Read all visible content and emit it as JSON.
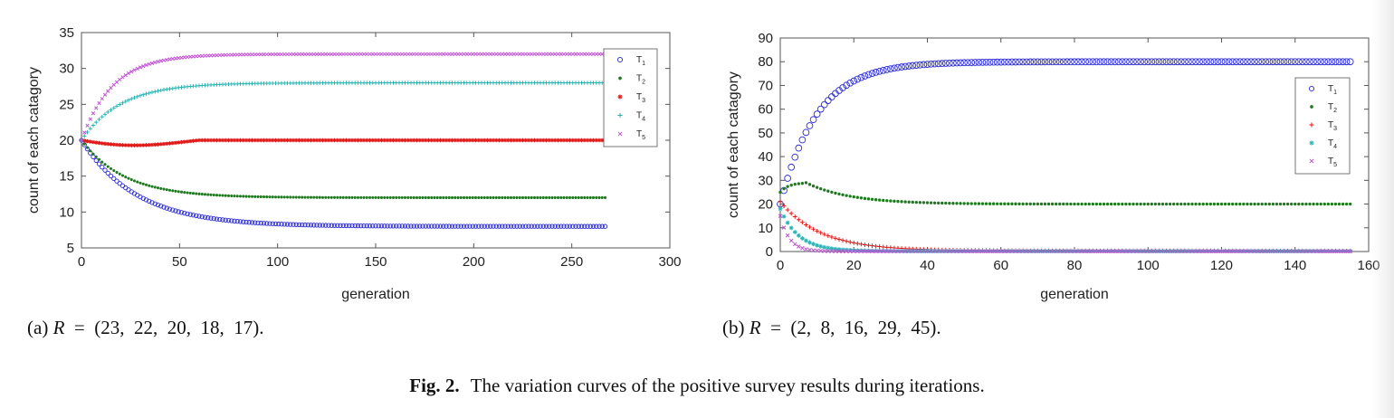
{
  "chart_data": [
    {
      "type": "scatter",
      "panel_label": "(a)",
      "caption_lhs": "R",
      "caption_eq": "=",
      "caption_rhs": "(23,  22,  20,  18,  17).",
      "xlabel": "generation",
      "ylabel": "count of each catagory",
      "xlim": [
        0,
        300
      ],
      "ylim": [
        5,
        35
      ],
      "xticks": [
        "0",
        "50",
        "100",
        "150",
        "200",
        "250",
        "300"
      ],
      "yticks": [
        "5",
        "10",
        "15",
        "20",
        "25",
        "30",
        "35"
      ],
      "legend_position": "top-right",
      "x_range": [
        0,
        268
      ],
      "series": [
        {
          "name": "T1",
          "label": "T",
          "sub": "1",
          "marker": "circle",
          "color": "#2b2bd6",
          "start": 20,
          "end": 8,
          "rate": 28
        },
        {
          "name": "T2",
          "label": "T",
          "sub": "2",
          "marker": "dot",
          "color": "#1d7a1d",
          "start": 20,
          "end": 12,
          "rate": 22
        },
        {
          "name": "T3",
          "label": "T",
          "sub": "3",
          "marker": "star",
          "color": "#e01818",
          "start": 20,
          "end": 20,
          "rate": 30
        },
        {
          "name": "T4",
          "label": "T",
          "sub": "4",
          "marker": "plus",
          "color": "#2ab5b5",
          "start": 20,
          "end": 28,
          "rate": 20
        },
        {
          "name": "T5",
          "label": "T",
          "sub": "5",
          "marker": "x",
          "color": "#c24fd6",
          "start": 20,
          "end": 32,
          "rate": 16
        }
      ]
    },
    {
      "type": "scatter",
      "panel_label": "(b)",
      "caption_lhs": "R",
      "caption_eq": "=",
      "caption_rhs": "(2,  8,  16,  29,  45).",
      "xlabel": "generation",
      "ylabel": "count of each catagory",
      "xlim": [
        0,
        160
      ],
      "ylim": [
        0,
        90
      ],
      "xticks": [
        "0",
        "20",
        "40",
        "60",
        "80",
        "100",
        "120",
        "140",
        "160"
      ],
      "yticks": [
        "0",
        "10",
        "20",
        "30",
        "40",
        "50",
        "60",
        "70",
        "80",
        "90"
      ],
      "legend_position": "top-right",
      "x_range": [
        0,
        155
      ],
      "series": [
        {
          "name": "T1",
          "label": "T",
          "sub": "1",
          "marker": "circle",
          "color": "#2b2bd6",
          "start": 20,
          "end": 80,
          "rate": 10
        },
        {
          "name": "T2",
          "label": "T",
          "sub": "2",
          "marker": "dot",
          "color": "#1d7a1d",
          "start": 25,
          "end": 20,
          "rate": 12,
          "peak": 29,
          "peak_at": 7
        },
        {
          "name": "T3",
          "label": "T",
          "sub": "3",
          "marker": "plus",
          "color": "#e01818",
          "start": 21,
          "end": 0.3,
          "rate": 11
        },
        {
          "name": "T4",
          "label": "T",
          "sub": "4",
          "marker": "star",
          "color": "#2ab5b5",
          "start": 18,
          "end": 0.2,
          "rate": 5
        },
        {
          "name": "T5",
          "label": "T",
          "sub": "5",
          "marker": "x",
          "color": "#c24fd6",
          "start": 15,
          "end": 0.1,
          "rate": 2.5
        }
      ]
    }
  ],
  "figure": {
    "label": "Fig. 2.",
    "caption": "The variation curves of the positive survey results during iterations."
  }
}
